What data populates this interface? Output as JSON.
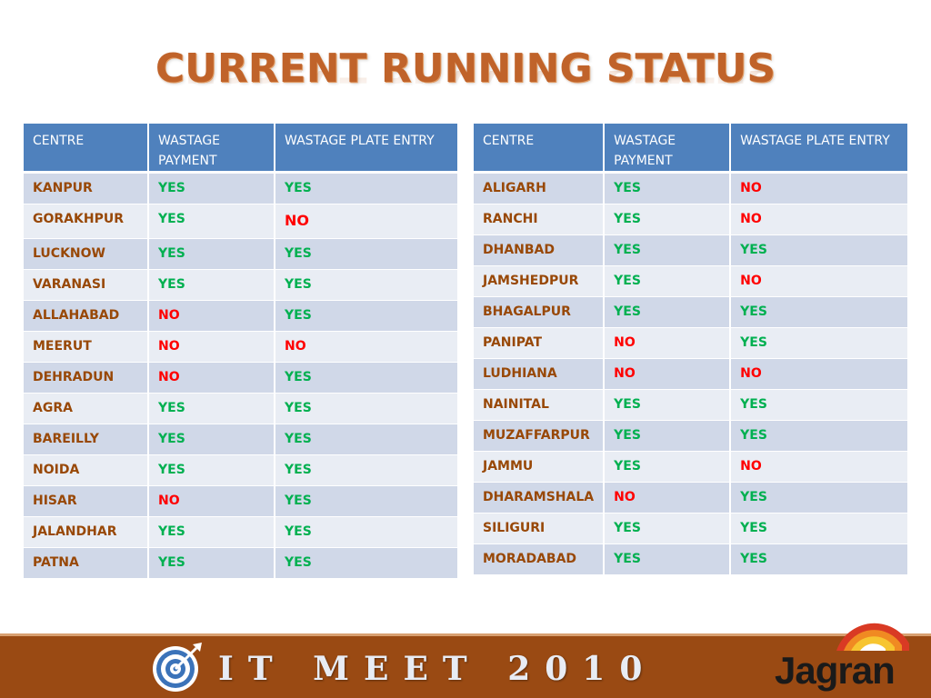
{
  "title": "CURRENT RUNNING STATUS",
  "columns": [
    "CENTRE",
    "WASTAGE PAYMENT",
    "WASTAGE PLATE ENTRY"
  ],
  "left_table": [
    {
      "centre": "KANPUR",
      "payment": "YES",
      "plate": "YES"
    },
    {
      "centre": "GORAKHPUR",
      "payment": "YES",
      "plate": "NO"
    },
    {
      "centre": "LUCKNOW",
      "payment": "YES",
      "plate": "YES"
    },
    {
      "centre": "VARANASI",
      "payment": "YES",
      "plate": "YES"
    },
    {
      "centre": "ALLAHABAD",
      "payment": "NO",
      "plate": "YES"
    },
    {
      "centre": "MEERUT",
      "payment": "NO",
      "plate": "NO"
    },
    {
      "centre": "DEHRADUN",
      "payment": "NO",
      "plate": "YES"
    },
    {
      "centre": "AGRA",
      "payment": "YES",
      "plate": "YES"
    },
    {
      "centre": "BAREILLY",
      "payment": "YES",
      "plate": "YES"
    },
    {
      "centre": "NOIDA",
      "payment": "YES",
      "plate": "YES"
    },
    {
      "centre": "HISAR",
      "payment": "NO",
      "plate": "YES"
    },
    {
      "centre": "JALANDHAR",
      "payment": "YES",
      "plate": "YES"
    },
    {
      "centre": "PATNA",
      "payment": "YES",
      "plate": "YES"
    }
  ],
  "right_table": [
    {
      "centre": "ALIGARH",
      "payment": "YES",
      "plate": "NO"
    },
    {
      "centre": "RANCHI",
      "payment": "YES",
      "plate": "NO"
    },
    {
      "centre": "DHANBAD",
      "payment": "YES",
      "plate": "YES"
    },
    {
      "centre": "JAMSHEDPUR",
      "payment": "YES",
      "plate": "NO"
    },
    {
      "centre": "BHAGALPUR",
      "payment": "YES",
      "plate": "YES"
    },
    {
      "centre": "PANIPAT",
      "payment": "NO",
      "plate": "YES"
    },
    {
      "centre": "LUDHIANA",
      "payment": "NO",
      "plate": "NO"
    },
    {
      "centre": "NAINITAL",
      "payment": "YES",
      "plate": "YES"
    },
    {
      "centre": "MUZAFFARPUR",
      "payment": "YES",
      "plate": "YES"
    },
    {
      "centre": "JAMMU",
      "payment": "YES",
      "plate": "NO"
    },
    {
      "centre": "DHARAMSHALA",
      "payment": "NO",
      "plate": "YES"
    },
    {
      "centre": "SILIGURI",
      "payment": "YES",
      "plate": "YES"
    },
    {
      "centre": "MORADABAD",
      "payment": "YES",
      "plate": "YES"
    }
  ],
  "footer": {
    "event": "IT MEET 2010",
    "logo": "Jagran",
    "icon": "target-icon"
  },
  "colors": {
    "title": "#c0632a",
    "header": "#4f81bd",
    "centre_text": "#984807",
    "yes": "#00b050",
    "no": "#ff0000",
    "footer": "#9a4a13"
  }
}
